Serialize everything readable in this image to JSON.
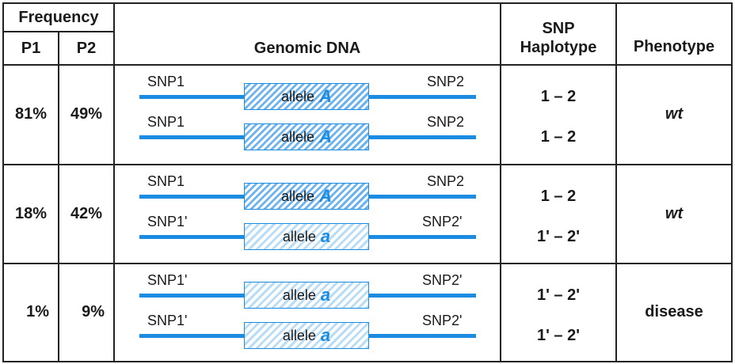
{
  "header": {
    "frequency": "Frequency",
    "p1": "P1",
    "p2": "P2",
    "genomic_dna": "Genomic DNA",
    "snp_haplotype_line1": "SNP",
    "snp_haplotype_line2": "Haplotype",
    "phenotype": "Phenotype"
  },
  "allele_word": "allele",
  "rows": [
    {
      "p1": "81%",
      "p2": "49%",
      "phenotype": "wt",
      "phenotype_italic": true,
      "chromosomes": [
        {
          "left": "SNP1",
          "right": "SNP2",
          "allele": "A",
          "type": "dominant",
          "haplotype": "1 – 2"
        },
        {
          "left": "SNP1",
          "right": "SNP2",
          "allele": "A",
          "type": "dominant",
          "haplotype": "1 – 2"
        }
      ]
    },
    {
      "p1": "18%",
      "p2": "42%",
      "phenotype": "wt",
      "phenotype_italic": true,
      "chromosomes": [
        {
          "left": "SNP1",
          "right": "SNP2",
          "allele": "A",
          "type": "dominant",
          "haplotype": "1 – 2"
        },
        {
          "left": "SNP1'",
          "right": "SNP2'",
          "allele": "a",
          "type": "recessive",
          "haplotype": "1' – 2'"
        }
      ]
    },
    {
      "p1": "1%",
      "p2": "9%",
      "phenotype": "disease",
      "phenotype_italic": false,
      "chromosomes": [
        {
          "left": "SNP1'",
          "right": "SNP2'",
          "allele": "a",
          "type": "recessive",
          "haplotype": "1' – 2'"
        },
        {
          "left": "SNP1'",
          "right": "SNP2'",
          "allele": "a",
          "type": "recessive",
          "haplotype": "1' – 2'"
        }
      ]
    }
  ],
  "colors": {
    "dna_blue": "#1c8ce3",
    "grid": "#222222",
    "text": "#1a1a1a"
  }
}
